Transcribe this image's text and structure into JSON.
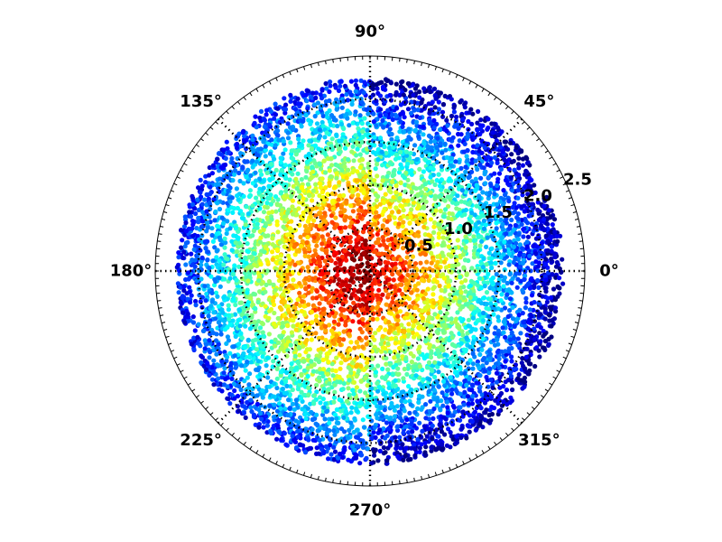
{
  "chart_data": {
    "type": "scatter",
    "projection": "polar",
    "title": "",
    "theta_tick_labels": [
      "0°",
      "45°",
      "90°",
      "135°",
      "180°",
      "225°",
      "270°",
      "315°"
    ],
    "theta_ticks_deg": [
      0,
      45,
      90,
      135,
      180,
      225,
      270,
      315
    ],
    "r_tick_labels": [
      "0.5",
      "1.0",
      "1.5",
      "2.0",
      "2.5"
    ],
    "r_ticks": [
      0.5,
      1.0,
      1.5,
      2.0,
      2.5
    ],
    "rlim": [
      0,
      2.5
    ],
    "data_rmax": 2.25,
    "grid": true,
    "grid_style": "dotted",
    "colormap": "jet",
    "color_encoding": "point density (high at center, low at edge)",
    "colors": {
      "high": "#cc0000",
      "low": "#0000cc",
      "grid": "#000000"
    }
  }
}
